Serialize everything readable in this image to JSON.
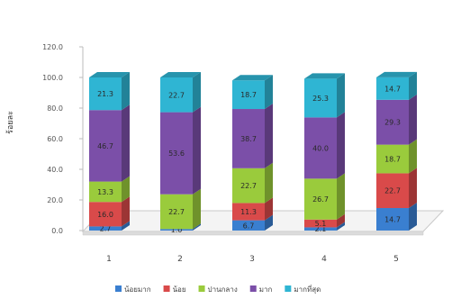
{
  "chart_data": {
    "type": "bar",
    "stacked": true,
    "style": "3d-column",
    "ylabel": "ร้อยละ",
    "ylim": [
      0,
      120
    ],
    "yticks": [
      "0.0",
      "20.0",
      "40.0",
      "60.0",
      "80.0",
      "100.0",
      "120.0"
    ],
    "categories": [
      "1",
      "2",
      "3",
      "4",
      "5"
    ],
    "series": [
      {
        "name": "น้อยมาก",
        "color": "#3a7fd0",
        "values": [
          2.7,
          1.0,
          6.7,
          2.1,
          14.7
        ],
        "labels": [
          "2.7",
          "1.0",
          "6.7",
          "2.1",
          "14.7"
        ]
      },
      {
        "name": "น้อย",
        "color": "#d94a4a",
        "values": [
          16.0,
          0.0,
          11.3,
          5.1,
          22.7
        ],
        "labels": [
          "16.0",
          "",
          "11.3",
          "5.1",
          "22.7"
        ]
      },
      {
        "name": "ปานกลาง",
        "color": "#9acb3c",
        "values": [
          13.3,
          22.7,
          22.7,
          26.7,
          18.7
        ],
        "labels": [
          "13.3",
          "22.7",
          "22.7",
          "26.7",
          "18.7"
        ]
      },
      {
        "name": "มาก",
        "color": "#7b4fa8",
        "values": [
          46.7,
          53.6,
          38.7,
          40.0,
          29.3
        ],
        "labels": [
          "46.7",
          "53.6",
          "38.7",
          "40.0",
          "29.3"
        ]
      },
      {
        "name": "มากที่สุด",
        "color": "#2fb5d3",
        "values": [
          21.3,
          22.7,
          18.7,
          25.3,
          14.7
        ],
        "labels": [
          "21.3",
          "22.7",
          "18.7",
          "25.3",
          "14.7"
        ]
      }
    ],
    "legend_position": "bottom",
    "grid": false
  }
}
